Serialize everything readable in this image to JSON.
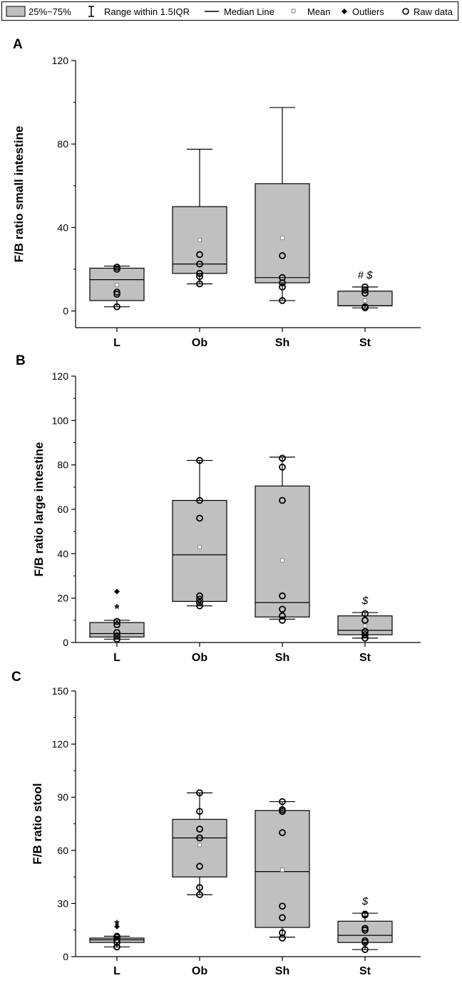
{
  "legend": {
    "items": [
      {
        "key": "box",
        "label": "25%~75%"
      },
      {
        "key": "range",
        "label": "Range within 1.5IQR"
      },
      {
        "key": "median",
        "label": "Median Line"
      },
      {
        "key": "mean",
        "label": "Mean"
      },
      {
        "key": "outlier",
        "label": "Outliers"
      },
      {
        "key": "raw",
        "label": "Raw data"
      }
    ]
  },
  "chart_data": [
    {
      "type": "box",
      "panel_label": "A",
      "ylabel": "F/B ratio small intestine",
      "ylim": [
        -8,
        120
      ],
      "yticks": [
        0,
        40,
        80,
        120
      ],
      "categories": [
        "L",
        "Ob",
        "Sh",
        "St"
      ],
      "box_fill": "#c0c0c0",
      "boxes": [
        {
          "q1": 5,
          "median": 15,
          "q3": 20.5,
          "mean": 12.5,
          "whisker_low": 2,
          "whisker_high": 21.5,
          "outliers": [],
          "raw": [
            2,
            8,
            9,
            20,
            21
          ],
          "annotation": ""
        },
        {
          "q1": 18,
          "median": 22.5,
          "q3": 50,
          "mean": 34,
          "whisker_low": 13,
          "whisker_high": 77.5,
          "outliers": [],
          "raw": [
            13,
            16.5,
            18,
            22.5,
            27
          ],
          "annotation": ""
        },
        {
          "q1": 13.5,
          "median": 16,
          "q3": 61,
          "mean": 35,
          "whisker_low": 5,
          "whisker_high": 97.5,
          "outliers": [],
          "raw": [
            5,
            11.5,
            13.5,
            16,
            26.5
          ],
          "annotation": ""
        },
        {
          "q1": 2.5,
          "median": 2.5,
          "q3": 9.5,
          "mean": 5,
          "whisker_low": 1.5,
          "whisker_high": 11.5,
          "outliers": [],
          "raw": [
            1.5,
            2,
            8.5,
            10,
            11.5
          ],
          "annotation": "# $"
        }
      ]
    },
    {
      "type": "box",
      "panel_label": "B",
      "ylabel": "F/B ratio large intestine",
      "ylim": [
        0,
        120
      ],
      "yticks": [
        0,
        20,
        40,
        60,
        80,
        100,
        120
      ],
      "categories": [
        "L",
        "Ob",
        "Sh",
        "St"
      ],
      "box_fill": "#c0c0c0",
      "boxes": [
        {
          "q1": 2.5,
          "median": 4,
          "q3": 9,
          "mean": 6,
          "whisker_low": 1.5,
          "whisker_high": 10,
          "outliers": [
            23
          ],
          "raw": [
            1.5,
            3,
            4.5,
            8,
            9.5
          ],
          "annotation": "*"
        },
        {
          "q1": 18.5,
          "median": 39.5,
          "q3": 64,
          "mean": 43,
          "whisker_low": 16.5,
          "whisker_high": 82,
          "outliers": [],
          "raw": [
            16.5,
            18,
            19.5,
            21,
            56,
            64,
            82
          ],
          "annotation": ""
        },
        {
          "q1": 11.5,
          "median": 18,
          "q3": 70.5,
          "mean": 37,
          "whisker_low": 10.5,
          "whisker_high": 83.5,
          "outliers": [],
          "raw": [
            10,
            12,
            15,
            21,
            64,
            79,
            83
          ],
          "annotation": ""
        },
        {
          "q1": 3.5,
          "median": 5.5,
          "q3": 12,
          "mean": 7.5,
          "whisker_low": 2,
          "whisker_high": 13.5,
          "outliers": [],
          "raw": [
            2,
            3.5,
            5,
            10,
            13
          ],
          "annotation": "$"
        }
      ]
    },
    {
      "type": "box",
      "panel_label": "C",
      "ylabel": "F/B ratio stool",
      "ylim": [
        0,
        150
      ],
      "yticks": [
        0,
        30,
        60,
        90,
        120,
        150
      ],
      "categories": [
        "L",
        "Ob",
        "Sh",
        "St"
      ],
      "box_fill": "#c0c0c0",
      "boxes": [
        {
          "q1": 8,
          "median": 9.5,
          "q3": 10.5,
          "mean": 9,
          "whisker_low": 5.5,
          "whisker_high": 11.5,
          "outliers": [
            17
          ],
          "raw": [
            5.5,
            8,
            9.5,
            11,
            11.5
          ],
          "annotation": "*"
        },
        {
          "q1": 45,
          "median": 67,
          "q3": 77.5,
          "mean": 63,
          "whisker_low": 35,
          "whisker_high": 92.5,
          "outliers": [],
          "raw": [
            35,
            39,
            51,
            67,
            72,
            82,
            92.5
          ],
          "annotation": ""
        },
        {
          "q1": 16.5,
          "median": 48,
          "q3": 82.5,
          "mean": 49,
          "whisker_low": 11,
          "whisker_high": 87.5,
          "outliers": [],
          "raw": [
            10.5,
            13.5,
            22,
            28.5,
            70,
            82,
            83,
            87.5
          ],
          "annotation": ""
        },
        {
          "q1": 8,
          "median": 12,
          "q3": 20,
          "mean": 14,
          "whisker_low": 4,
          "whisker_high": 24.5,
          "outliers": [],
          "raw": [
            4,
            8,
            9,
            15,
            16,
            23.5,
            24
          ],
          "annotation": "$"
        }
      ]
    }
  ]
}
